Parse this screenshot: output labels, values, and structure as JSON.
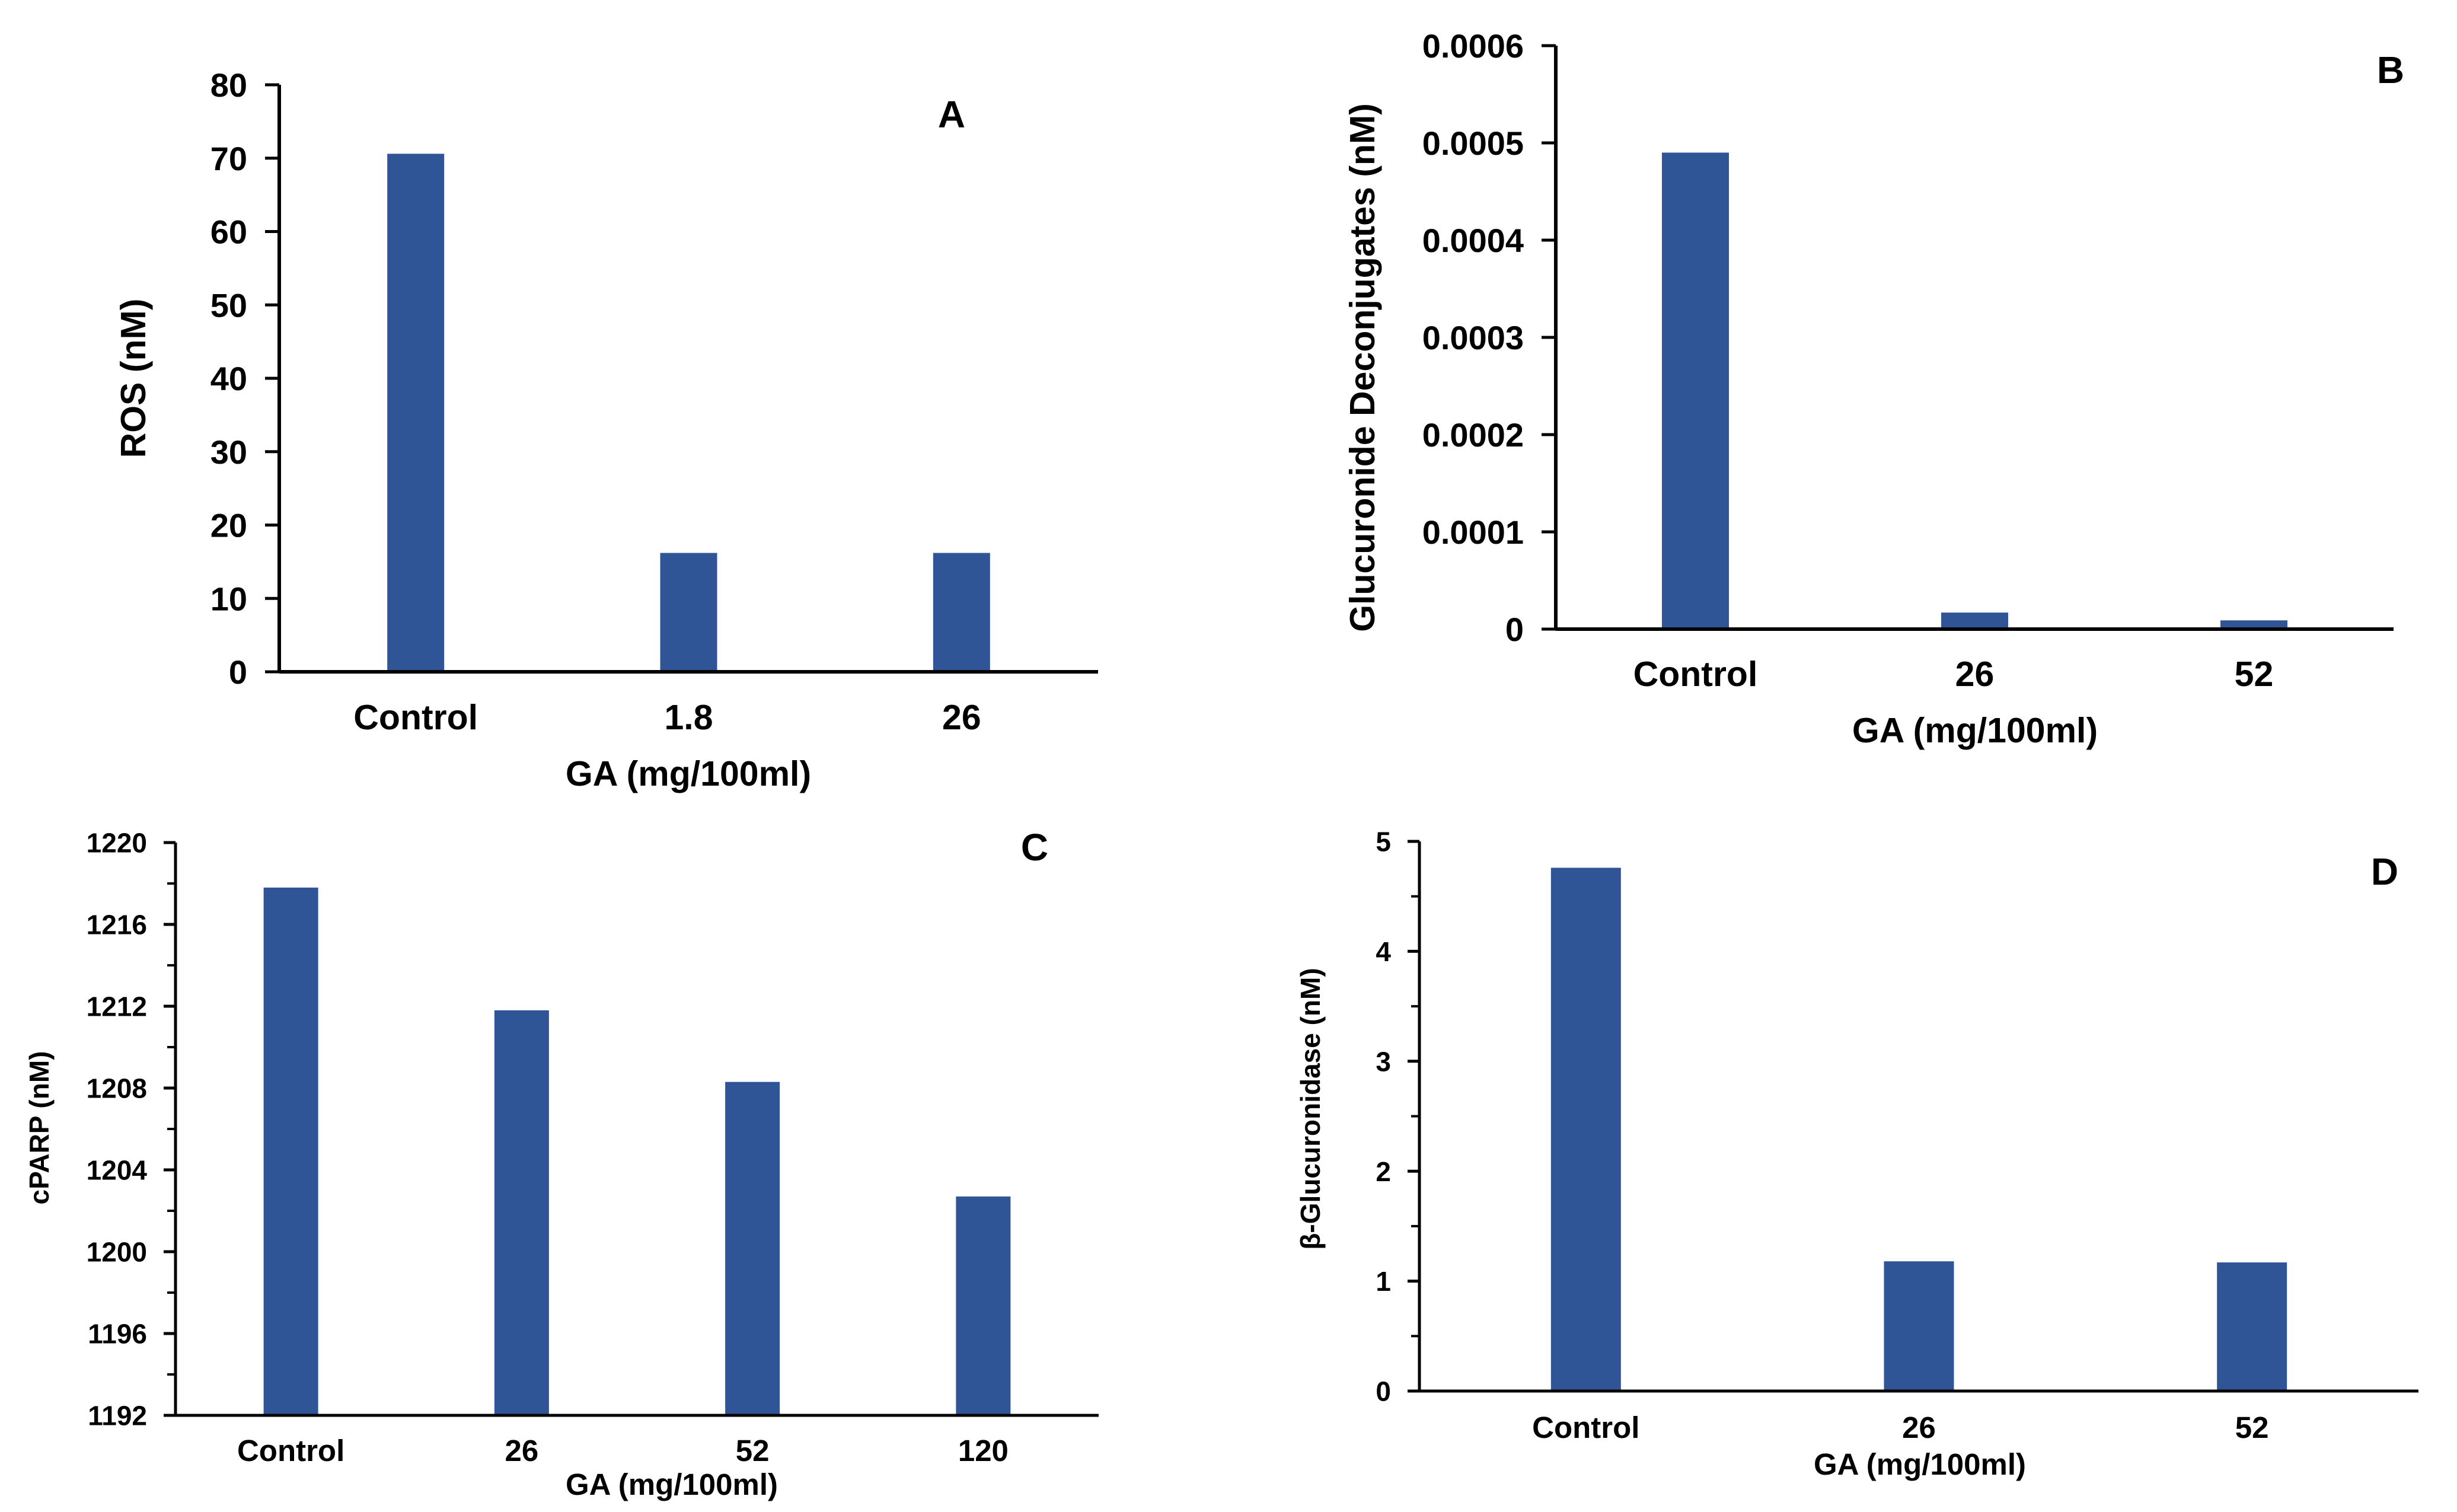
{
  "colors": {
    "bar": "#2F5597",
    "axis": "#000000",
    "background": "#ffffff"
  },
  "chart_data": [
    {
      "id": "A",
      "type": "bar",
      "panel_label": "A",
      "categories": [
        "Control",
        "1.8",
        "26"
      ],
      "values": [
        70.6,
        16.2,
        16.2
      ],
      "xlabel": "GA (mg/100ml)",
      "ylabel": "ROS (nM)",
      "ylim": [
        0,
        80
      ],
      "yticks": [
        "0",
        "10",
        "20",
        "30",
        "40",
        "50",
        "60",
        "70",
        "80"
      ],
      "grid": false
    },
    {
      "id": "B",
      "type": "bar",
      "panel_label": "B",
      "categories": [
        "Control",
        "26",
        "52"
      ],
      "values": [
        0.00049,
        1.7e-05,
        9e-06
      ],
      "xlabel": "GA (mg/100ml)",
      "ylabel": "Glucuronide Deconjugates (nM)",
      "ylim": [
        0,
        0.0006
      ],
      "yticks": [
        "0",
        "0.0001",
        "0.0002",
        "0.0003",
        "0.0004",
        "0.0005",
        "0.0006"
      ],
      "grid": false
    },
    {
      "id": "C",
      "type": "bar",
      "panel_label": "C",
      "categories": [
        "Control",
        "26",
        "52",
        "120"
      ],
      "values": [
        1217.8,
        1211.8,
        1208.3,
        1202.7
      ],
      "xlabel": "GA (mg/100ml)",
      "ylabel": "cPARP (nM)",
      "ylim": [
        1192,
        1220
      ],
      "yticks": [
        "1192",
        "1196",
        "1200",
        "1204",
        "1208",
        "1212",
        "1216",
        "1220"
      ],
      "grid": false
    },
    {
      "id": "D",
      "type": "bar",
      "panel_label": "D",
      "categories": [
        "Control",
        "26",
        "52"
      ],
      "values": [
        4.76,
        1.18,
        1.17
      ],
      "xlabel": "GA (mg/100ml)",
      "ylabel": "β-Glucuronidase (nM)",
      "ylim": [
        0,
        5
      ],
      "yticks": [
        "0",
        "1",
        "2",
        "3",
        "4",
        "5"
      ],
      "grid": false
    }
  ]
}
